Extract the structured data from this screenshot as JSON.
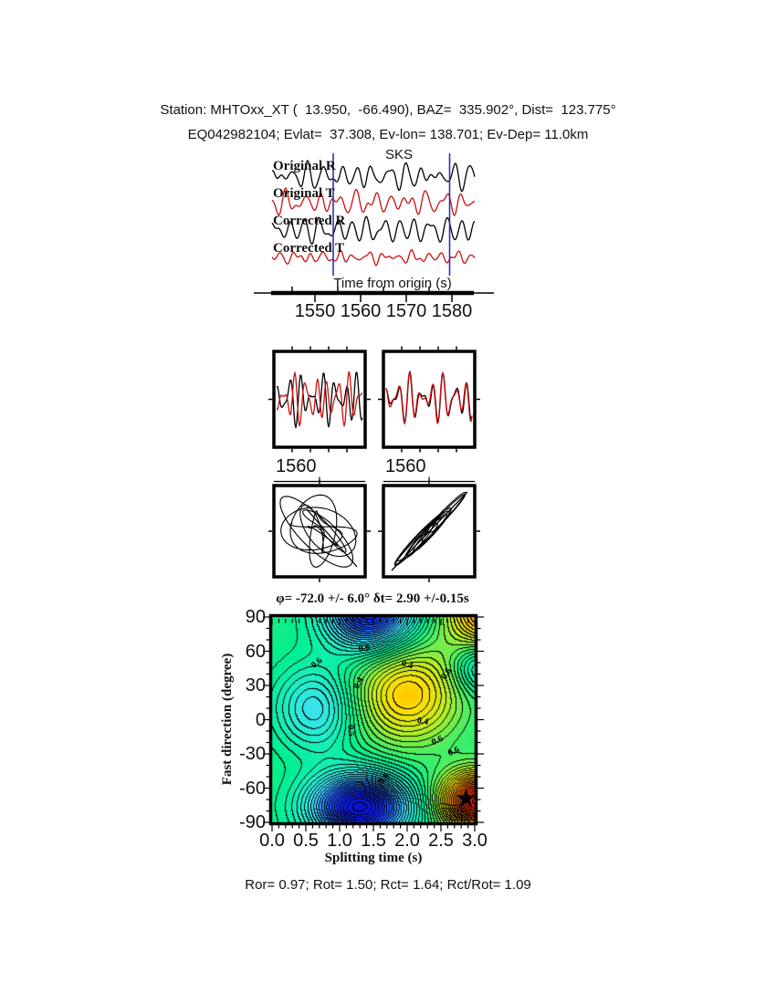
{
  "header": {
    "line1": "Station: MHTOxx_XT (  13.950,  -66.490), BAZ=  335.902°, Dist=  123.775°",
    "line2": "EQ042982104; Evlat=  37.308, Ev-lon= 138.701; Ev-Dep= 11.0km"
  },
  "phase_label": {
    "text": "SKS",
    "color": "#ee1111"
  },
  "footer": {
    "text": "Ror= 0.97; Rot= 1.50; Rct= 1.64; Rct/Rot= 1.09"
  },
  "star": {
    "glyph": "★"
  },
  "colors": {
    "trace_black": "#000000",
    "trace_red": "#cc0f0f",
    "window_line": "#2a35b0",
    "background_green": "#00ee90"
  },
  "chart_data": [
    {
      "type": "line",
      "id": "seismogram-panel",
      "xlabel": "Time from origin (s)",
      "xticks": [
        1550,
        1560,
        1570,
        1580
      ],
      "xrange": [
        1540.6,
        1585.0
      ],
      "window_seconds": [
        1554.0,
        1579.5
      ],
      "traces": [
        {
          "name": "Original R",
          "color": "#000000",
          "components": [
            [
              8,
              0.28,
              0.3
            ],
            [
              5,
              0.37,
              2.2
            ],
            [
              3,
              0.22,
              4.1
            ],
            [
              2,
              0.52,
              1.5
            ]
          ]
        },
        {
          "name": "Original T",
          "color": "#cc0f0f",
          "components": [
            [
              7,
              0.26,
              2.8
            ],
            [
              5,
              0.39,
              0.9
            ],
            [
              3,
              0.2,
              3.6
            ],
            [
              2,
              0.5,
              5.0
            ]
          ]
        },
        {
          "name": "Corrected R",
          "color": "#000000",
          "components": [
            [
              9,
              0.29,
              1.1
            ],
            [
              5,
              0.38,
              3.4
            ],
            [
              3,
              0.21,
              0.2
            ],
            [
              2,
              0.47,
              2.9
            ]
          ]
        },
        {
          "name": "Corrected T",
          "color": "#cc0f0f",
          "components": [
            [
              3.5,
              0.31,
              4.4
            ],
            [
              2.5,
              0.46,
              1.8
            ],
            [
              2,
              0.2,
              0.7
            ],
            [
              1.2,
              0.58,
              3.2
            ]
          ]
        }
      ]
    },
    {
      "type": "line",
      "id": "fast-slow-comparison",
      "window_seconds": 25.5,
      "panels": [
        {
          "tick_label": "1560",
          "series": [
            {
              "name": "component-1",
              "color": "#000000",
              "components": [
                [
                  9,
                  0.3,
                  0.5
                ],
                [
                  5,
                  0.42,
                  2.0
                ],
                [
                  3,
                  0.2,
                  3.8
                ]
              ]
            },
            {
              "name": "component-2",
              "color": "#cc0f0f",
              "components": [
                [
                  9,
                  0.31,
                  3.6
                ],
                [
                  5,
                  0.44,
                  5.2
                ],
                [
                  3,
                  0.23,
                  1.1
                ]
              ]
            }
          ]
        },
        {
          "tick_label": "1560",
          "series": [
            {
              "name": "component-1",
              "color": "#000000",
              "components": [
                [
                  8,
                  0.3,
                  0.8
                ],
                [
                  5,
                  0.41,
                  2.5
                ],
                [
                  3,
                  0.21,
                  4.6
                ]
              ]
            },
            {
              "name": "component-2",
              "color": "#cc0f0f",
              "components": [
                [
                  8,
                  0.3,
                  1.05
                ],
                [
                  5,
                  0.41,
                  2.7
                ],
                [
                  3,
                  0.21,
                  4.35
                ]
              ]
            }
          ]
        }
      ]
    },
    {
      "type": "scatter",
      "id": "particle-motion",
      "panels": [
        {
          "name": "original-particle-motion",
          "source_panel": 0,
          "trend_line": [
            [
              336,
              558
            ],
            [
              391,
              621
            ]
          ]
        },
        {
          "name": "corrected-particle-motion",
          "source_panel": 1,
          "trend_line": [
            [
              429,
              625
            ],
            [
              512,
              539
            ]
          ]
        }
      ]
    },
    {
      "type": "heatmap",
      "id": "splitting-error-surface",
      "title": "φ= -72.0 +/- 6.0° δt= 2.90 +/-0.15s",
      "xlabel": "Splitting time (s)",
      "ylabel": "Fast direction (degree)",
      "xlim": [
        0.0,
        3.0
      ],
      "ylim": [
        -90,
        90
      ],
      "xticks": [
        "0.0",
        "0.5",
        "1.0",
        "1.5",
        "2.0",
        "2.5",
        "3.0"
      ],
      "yticks": [
        "90",
        "60",
        "30",
        "0",
        "-30",
        "-60",
        "-90"
      ],
      "grid": false,
      "contour_interval": 0.02,
      "background_level": 0.58,
      "value_range": [
        0.08,
        1.12
      ],
      "best_solution": {
        "splitting_time": 2.9,
        "fast_direction": -72
      },
      "field_features": [
        {
          "t": 0.65,
          "deg": 10,
          "st": 0.42,
          "sdeg": 26,
          "amp": 0.16
        },
        {
          "t": 1.45,
          "deg": 97,
          "st": 0.45,
          "sdeg": 24,
          "amp": 0.4
        },
        {
          "t": 2.0,
          "deg": 22,
          "st": 0.55,
          "sdeg": 30,
          "amp": -0.22
        },
        {
          "t": 3.1,
          "deg": 47,
          "st": 0.28,
          "sdeg": 16,
          "amp": 0.16
        },
        {
          "t": 1.3,
          "deg": -77,
          "st": 0.5,
          "sdeg": 20,
          "amp": 0.45
        },
        {
          "t": 3.05,
          "deg": -72,
          "st": 0.38,
          "sdeg": 18,
          "amp": -0.45
        },
        {
          "t": 3.25,
          "deg": 100,
          "st": 0.45,
          "sdeg": 30,
          "amp": -0.32
        }
      ],
      "colormap": [
        [
          0.1,
          [
            221,
            0,
            0
          ]
        ],
        [
          0.22,
          [
            255,
            68,
            0
          ]
        ],
        [
          0.3,
          [
            255,
            136,
            0
          ]
        ],
        [
          0.38,
          [
            255,
            221,
            0
          ]
        ],
        [
          0.46,
          [
            187,
            238,
            34
          ]
        ],
        [
          0.54,
          [
            68,
            238,
            102
          ]
        ],
        [
          0.6,
          [
            0,
            238,
            144
          ]
        ],
        [
          0.68,
          [
            34,
            238,
            204
          ]
        ],
        [
          0.76,
          [
            68,
            221,
            255
          ]
        ],
        [
          0.86,
          [
            34,
            102,
            255
          ]
        ],
        [
          0.96,
          [
            17,
            34,
            238
          ]
        ],
        [
          1.1,
          [
            0,
            0,
            170
          ]
        ]
      ],
      "contour_labels": [
        {
          "text": "0.6",
          "t": 0.66,
          "deg": 49,
          "rot": -40
        },
        {
          "text": "0.6",
          "t": 1.36,
          "deg": 62,
          "rot": -8
        },
        {
          "text": "0.4",
          "t": 1.28,
          "deg": 32,
          "rot": -65
        },
        {
          "text": "0.4",
          "t": 2.0,
          "deg": 48,
          "rot": 15
        },
        {
          "text": "0.6",
          "t": 2.58,
          "deg": 40,
          "rot": -55
        },
        {
          "text": "0.5",
          "t": 1.16,
          "deg": -10,
          "rot": 85
        },
        {
          "text": "0.4",
          "t": 2.23,
          "deg": -2,
          "rot": 10
        },
        {
          "text": "0.6",
          "t": 2.45,
          "deg": -19,
          "rot": -25
        },
        {
          "text": "0.6",
          "t": 2.69,
          "deg": -28,
          "rot": -25
        },
        {
          "text": "0.8",
          "t": 1.66,
          "deg": -52,
          "rot": -50
        }
      ]
    }
  ]
}
